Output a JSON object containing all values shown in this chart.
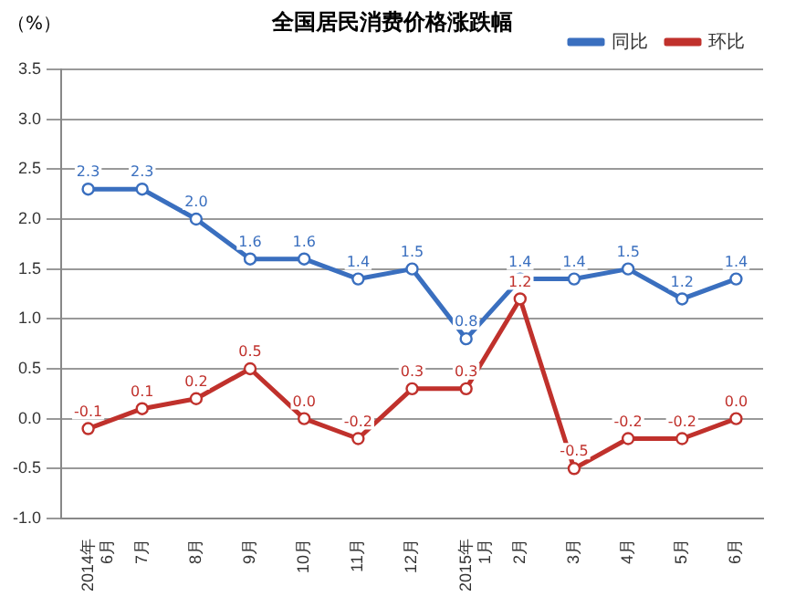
{
  "chart_data": {
    "type": "line",
    "title": "全国居民消费价格涨跌幅",
    "ylabel": "（%）",
    "categories": [
      "2014年\n6月",
      "7月",
      "8月",
      "9月",
      "10月",
      "11月",
      "12月",
      "2015年\n1月",
      "2月",
      "3月",
      "4月",
      "5月",
      "6月"
    ],
    "series": [
      {
        "name": "同比",
        "color": "#3a6fbf",
        "values": [
          2.3,
          2.3,
          2.0,
          1.6,
          1.6,
          1.4,
          1.5,
          0.8,
          1.4,
          1.4,
          1.5,
          1.2,
          1.4
        ],
        "value_labels": [
          "2.3",
          "2.3",
          "2.0",
          "1.6",
          "1.6",
          "1.4",
          "1.5",
          "0.8",
          "1.4",
          "1.4",
          "1.5",
          "1.2",
          "1.4"
        ]
      },
      {
        "name": "环比",
        "color": "#c0312c",
        "values": [
          -0.1,
          0.1,
          0.2,
          0.5,
          0.0,
          -0.2,
          0.3,
          0.3,
          1.2,
          -0.5,
          -0.2,
          -0.2,
          0.0
        ],
        "value_labels": [
          "-0.1",
          "0.1",
          "0.2",
          "0.5",
          "0.0",
          "-0.2",
          "0.3",
          "0.3",
          "1.2",
          "-0.5",
          "-0.2",
          "-0.2",
          "0.0"
        ]
      }
    ],
    "ylim": [
      -1.0,
      3.5
    ],
    "yticks": [
      {
        "value": -1,
        "label": "-1.0"
      },
      {
        "value": -0.5,
        "label": "-0.5"
      },
      {
        "value": 0,
        "label": "0.0"
      },
      {
        "value": 0.5,
        "label": "0.5"
      },
      {
        "value": 1,
        "label": "1.0"
      },
      {
        "value": 1.5,
        "label": "1.5"
      },
      {
        "value": 2,
        "label": "2.0"
      },
      {
        "value": 2.5,
        "label": "2.5"
      },
      {
        "value": 3,
        "label": "3.0"
      },
      {
        "value": 3.5,
        "label": "3.5"
      }
    ],
    "grid": "y",
    "legend": "top right",
    "marker": "circle",
    "line_style": "solid"
  }
}
